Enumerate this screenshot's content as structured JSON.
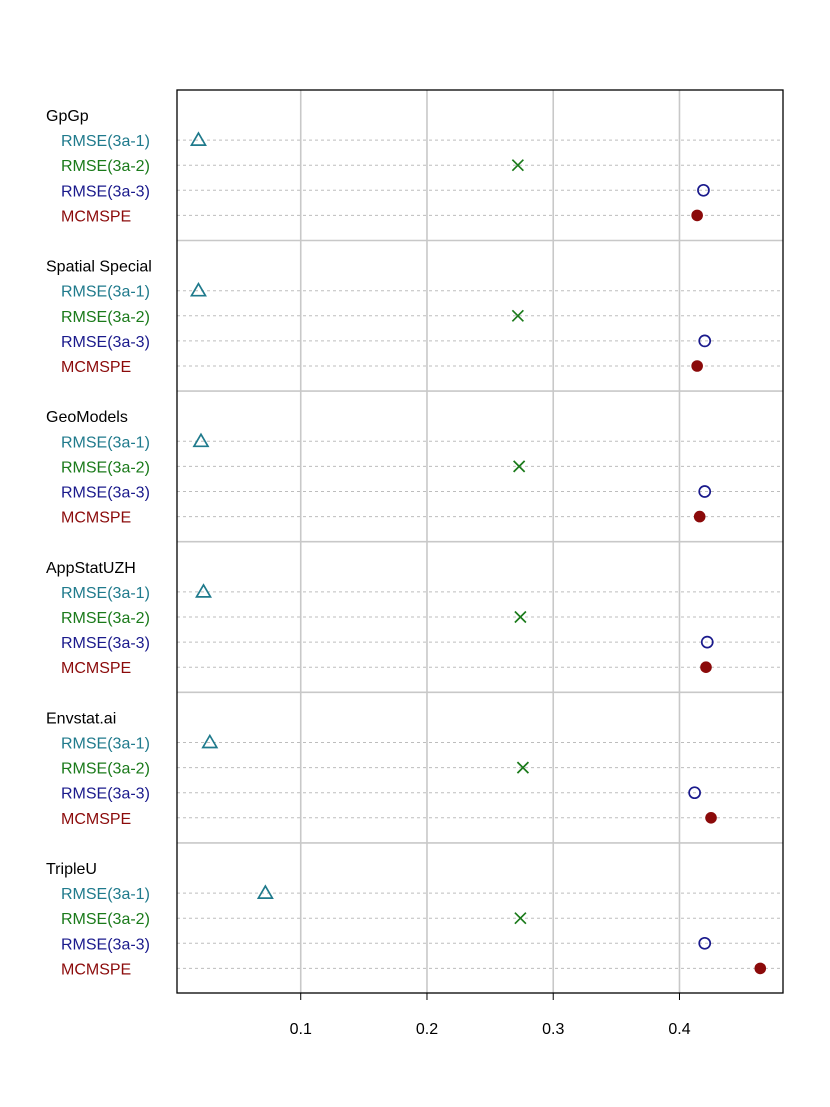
{
  "chart_data": {
    "type": "dotplot",
    "xlim": [
      0.002,
      0.482
    ],
    "x_ticks": [
      0.1,
      0.2,
      0.3,
      0.4
    ],
    "x_tick_labels": [
      "0.1",
      "0.2",
      "0.3",
      "0.4"
    ],
    "grid": true,
    "series": [
      {
        "name": "RMSE(3a-1)",
        "color": "#1f7a8c",
        "marker": "open-triangle"
      },
      {
        "name": "RMSE(3a-2)",
        "color": "#1a7a1a",
        "marker": "cross"
      },
      {
        "name": "RMSE(3a-3)",
        "color": "#1a1a8c",
        "marker": "open-circle"
      },
      {
        "name": "MCMSPE",
        "color": "#8b0a0a",
        "marker": "filled-circle"
      }
    ],
    "groups": [
      {
        "name": "GpGp",
        "values": [
          0.019,
          0.272,
          0.419,
          0.414
        ]
      },
      {
        "name": "Spatial Special",
        "values": [
          0.019,
          0.272,
          0.42,
          0.414
        ]
      },
      {
        "name": "GeoModels",
        "values": [
          0.021,
          0.273,
          0.42,
          0.416
        ]
      },
      {
        "name": "AppStatUZH",
        "values": [
          0.023,
          0.274,
          0.422,
          0.421
        ]
      },
      {
        "name": "Envstat.ai",
        "values": [
          0.028,
          0.276,
          0.412,
          0.425
        ]
      },
      {
        "name": "TripleU",
        "values": [
          0.072,
          0.274,
          0.42,
          0.464
        ]
      }
    ]
  }
}
